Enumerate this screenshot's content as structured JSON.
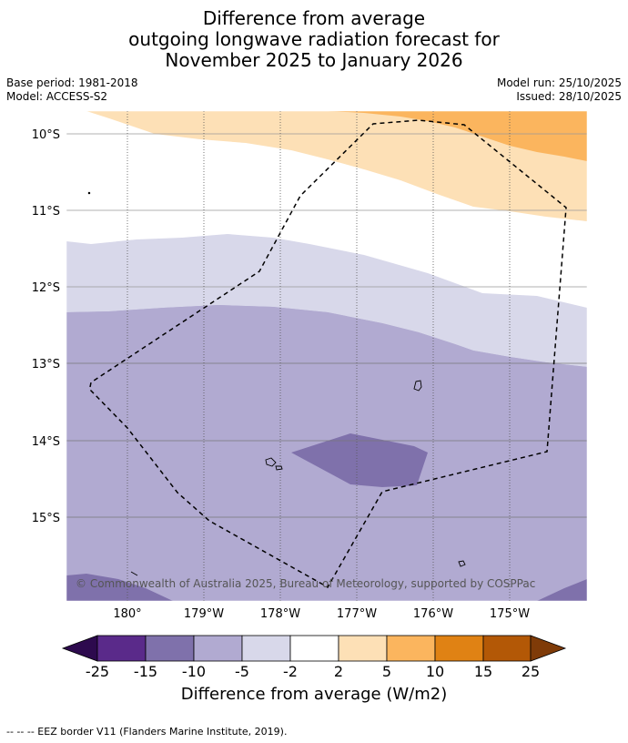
{
  "title": {
    "line1": "Difference from average",
    "line2": "outgoing longwave radiation forecast for",
    "line3": "November 2025 to January 2026"
  },
  "meta": {
    "base_period": "Base period: 1981-2018",
    "model": "Model: ACCESS-S2",
    "model_run": "Model run: 25/10/2025",
    "issued": "Issued: 28/10/2025"
  },
  "map": {
    "lat_labels": [
      "10°S",
      "11°S",
      "12°S",
      "13°S",
      "14°S",
      "15°S"
    ],
    "lon_labels": [
      "180°",
      "179°W",
      "178°W",
      "177°W",
      "176°W",
      "175°W"
    ],
    "copyright": "© Commonwealth of Australia 2025, Bureau of Meteorology, supported by COSPPac"
  },
  "colorbar": {
    "ticks": [
      "-25",
      "-15",
      "-10",
      "-5",
      "-2",
      "2",
      "5",
      "10",
      "15",
      "25"
    ],
    "colors": {
      "extend_low": "#2d0a4e",
      "b_25_15": "#5a2a8a",
      "b_15_10": "#7f71ab",
      "b_10_5": "#b1aad1",
      "b_5_2": "#d8d8ea",
      "b_2_2": "#ffffff",
      "b_2_5": "#fde0b6",
      "b_5_10": "#fbb55e",
      "b_10_15": "#e08214",
      "b_15_25": "#b35806",
      "extend_high": "#7f3b08"
    },
    "title": "Difference from average (W/m2)"
  },
  "footer": "--  --  -- EEZ border V11 (Flanders Marine Institute, 2019)."
}
